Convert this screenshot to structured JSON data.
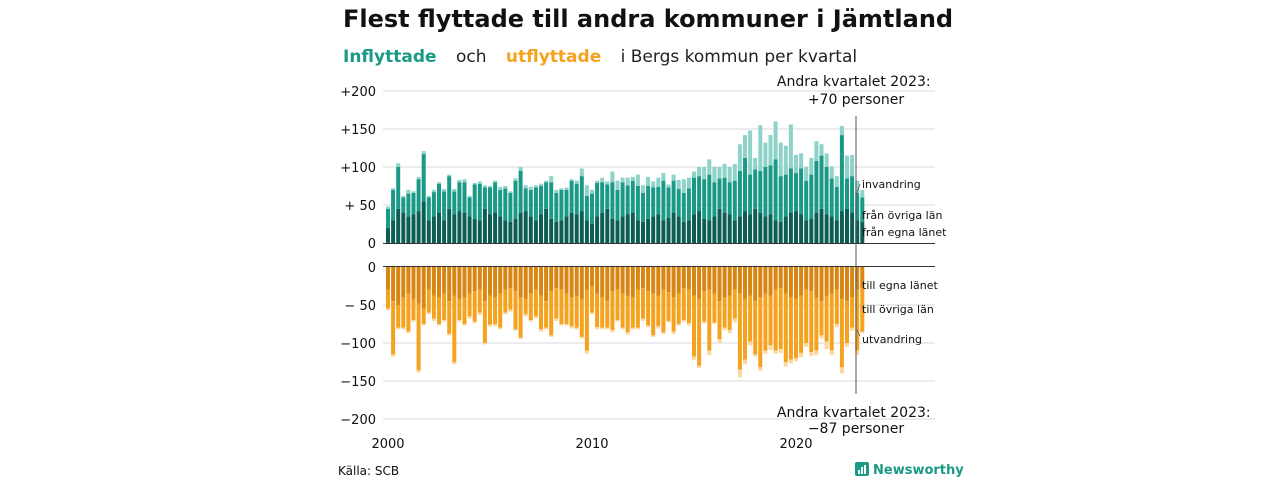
{
  "title": "Flest flyttade till andra kommuner i Jämtland",
  "subtitle": {
    "inflyttade": "Inflyttade",
    "och": "och",
    "utflyttade": "utflyttade",
    "rest": "i Bergs kommun per kvartal"
  },
  "annotation_top": {
    "line1": "Andra kvartalet 2023:",
    "line2": "+70 personer"
  },
  "annotation_bottom": {
    "line1": "Andra kvartalet 2023:",
    "line2": "−87 personer"
  },
  "source": "Källa: SCB",
  "brand": "Newsworthy",
  "colors": {
    "in_egna": "#0c5e54",
    "in_ovriga": "#1a9a86",
    "in_invandring": "#8ed3c8",
    "out_egna": "#d98612",
    "out_ovriga": "#f5a21e",
    "out_utvandring": "#fdd7a0",
    "grid": "#d9d9d9",
    "baseline": "#333333",
    "brand": "#1a9a86"
  },
  "icons": {
    "brand": "newsworthy-logo-icon"
  },
  "chart_data": {
    "type": "bar",
    "stacked": true,
    "x_start": "2000 Q1",
    "x_end": "2023 Q2",
    "x_unit": "kvartal",
    "x_ticks": [
      "2000",
      "2010",
      "2020"
    ],
    "upper": {
      "yticks": [
        "+200",
        "+150",
        "+100",
        "+ 50",
        "0"
      ],
      "ylim": [
        0,
        200
      ],
      "series": [
        {
          "name": "från egna länet",
          "values": [
            20,
            30,
            45,
            40,
            35,
            38,
            42,
            55,
            30,
            35,
            40,
            30,
            45,
            38,
            42,
            40,
            35,
            32,
            30,
            45,
            38,
            40,
            35,
            30,
            28,
            32,
            40,
            42,
            35,
            30,
            38,
            45,
            32,
            28,
            30,
            35,
            40,
            38,
            42,
            30,
            25,
            35,
            40,
            45,
            32,
            30,
            35,
            38,
            40,
            30,
            28,
            32,
            35,
            38,
            30,
            33,
            40,
            35,
            28,
            30,
            38,
            42,
            32,
            30,
            35,
            45,
            40,
            38,
            30,
            35,
            42,
            38,
            45,
            40,
            35,
            38,
            30,
            28,
            35,
            40,
            42,
            38,
            30,
            32,
            40,
            45,
            38,
            35,
            30,
            42,
            45,
            40,
            30,
            28
          ]
        },
        {
          "name": "från övriga län",
          "values": [
            25,
            40,
            55,
            20,
            30,
            28,
            42,
            62,
            30,
            32,
            38,
            38,
            43,
            30,
            38,
            40,
            25,
            45,
            48,
            28,
            35,
            40,
            35,
            42,
            38,
            50,
            55,
            30,
            35,
            43,
            37,
            35,
            48,
            38,
            40,
            35,
            42,
            40,
            46,
            32,
            40,
            44,
            40,
            32,
            48,
            40,
            45,
            38,
            42,
            45,
            38,
            43,
            38,
            36,
            52,
            40,
            42,
            36,
            38,
            42,
            48,
            46,
            52,
            60,
            45,
            40,
            46,
            42,
            52,
            60,
            70,
            52,
            52,
            55,
            65,
            64,
            80,
            60,
            55,
            58,
            50,
            60,
            52,
            58,
            68,
            70,
            62,
            50,
            44,
            100,
            40,
            48,
            36,
            32
          ]
        },
        {
          "name": "invandring",
          "values": [
            3,
            2,
            5,
            2,
            5,
            2,
            3,
            4,
            2,
            3,
            2,
            3,
            2,
            3,
            3,
            4,
            2,
            2,
            3,
            3,
            2,
            2,
            4,
            3,
            2,
            3,
            5,
            4,
            4,
            3,
            3,
            2,
            8,
            4,
            2,
            3,
            2,
            4,
            10,
            14,
            5,
            3,
            6,
            4,
            14,
            12,
            6,
            10,
            5,
            15,
            10,
            12,
            8,
            12,
            10,
            4,
            8,
            12,
            18,
            14,
            8,
            12,
            16,
            20,
            20,
            15,
            18,
            20,
            22,
            35,
            30,
            58,
            15,
            60,
            32,
            40,
            50,
            44,
            38,
            58,
            24,
            20,
            18,
            22,
            26,
            15,
            18,
            16,
            14,
            12,
            30,
            28,
            16,
            10
          ]
        }
      ],
      "marker_label": "+70 personer"
    },
    "lower": {
      "yticks": [
        "0",
        "− 50",
        "−100",
        "−150",
        "−200"
      ],
      "ylim": [
        -200,
        0
      ],
      "series": [
        {
          "name": "till egna länet",
          "values": [
            -30,
            -45,
            -50,
            -40,
            -35,
            -42,
            -48,
            -55,
            -30,
            -38,
            -40,
            -35,
            -45,
            -38,
            -42,
            -40,
            -35,
            -32,
            -30,
            -45,
            -38,
            -40,
            -35,
            -30,
            -28,
            -32,
            -40,
            -42,
            -35,
            -30,
            -38,
            -45,
            -32,
            -28,
            -30,
            -35,
            -40,
            -38,
            -42,
            -30,
            -25,
            -35,
            -40,
            -45,
            -32,
            -30,
            -35,
            -38,
            -40,
            -30,
            -28,
            -32,
            -35,
            -38,
            -30,
            -33,
            -40,
            -35,
            -28,
            -30,
            -38,
            -42,
            -32,
            -30,
            -35,
            -45,
            -40,
            -38,
            -30,
            -35,
            -42,
            -38,
            -45,
            -40,
            -35,
            -38,
            -30,
            -28,
            -35,
            -40,
            -42,
            -38,
            -30,
            -32,
            -40,
            -45,
            -38,
            -35,
            -30,
            -42,
            -45,
            -40,
            -30,
            -28
          ]
        },
        {
          "name": "till övriga län",
          "values": [
            -25,
            -70,
            -30,
            -40,
            -50,
            -28,
            -88,
            -20,
            -30,
            -30,
            -35,
            -35,
            -43,
            -87,
            -28,
            -35,
            -30,
            -40,
            -30,
            -55,
            -38,
            -35,
            -45,
            -30,
            -28,
            -50,
            -53,
            -20,
            -35,
            -35,
            -44,
            -35,
            -58,
            -40,
            -45,
            -40,
            -38,
            -42,
            -50,
            -80,
            -35,
            -44,
            -40,
            -35,
            -51,
            -40,
            -45,
            -48,
            -40,
            -50,
            -40,
            -45,
            -55,
            -40,
            -56,
            -38,
            -45,
            -40,
            -42,
            -44,
            -80,
            -88,
            -40,
            -80,
            -38,
            -50,
            -40,
            -45,
            -38,
            -100,
            -80,
            -60,
            -70,
            -92,
            -75,
            -65,
            -80,
            -80,
            -90,
            -82,
            -78,
            -75,
            -70,
            -80,
            -70,
            -45,
            -60,
            -75,
            -45,
            -90,
            -55,
            -40,
            -80,
            -57
          ]
        },
        {
          "name": "utvandring",
          "values": [
            -2,
            -3,
            -2,
            -2,
            -2,
            -2,
            -3,
            -2,
            -2,
            -3,
            -2,
            -2,
            -2,
            -3,
            -2,
            -2,
            -3,
            -2,
            -3,
            -2,
            -2,
            -3,
            -2,
            -2,
            -3,
            -2,
            -2,
            -3,
            -2,
            -2,
            -3,
            -2,
            -2,
            -3,
            -2,
            -2,
            -3,
            -2,
            -2,
            -4,
            -2,
            -3,
            -2,
            -2,
            -3,
            -2,
            -2,
            -3,
            -2,
            -2,
            -3,
            -2,
            -2,
            -3,
            -2,
            -2,
            -3,
            -2,
            -2,
            -3,
            -4,
            -3,
            -2,
            -6,
            -2,
            -5,
            -3,
            -4,
            -5,
            -10,
            -6,
            -5,
            -3,
            -5,
            -4,
            -6,
            -4,
            -5,
            -6,
            -5,
            -4,
            -6,
            -5,
            -5,
            -6,
            -4,
            -10,
            -6,
            -4,
            -8,
            -5,
            -4,
            -6,
            -2
          ]
        }
      ],
      "marker_label": "−87 personer"
    },
    "segment_labels_upper": [
      "invandring",
      "från övriga län",
      "från egna länet"
    ],
    "segment_labels_lower": [
      "till egna länet",
      "till övriga län",
      "utvandring"
    ],
    "grid": true,
    "legend": "inline-right"
  }
}
